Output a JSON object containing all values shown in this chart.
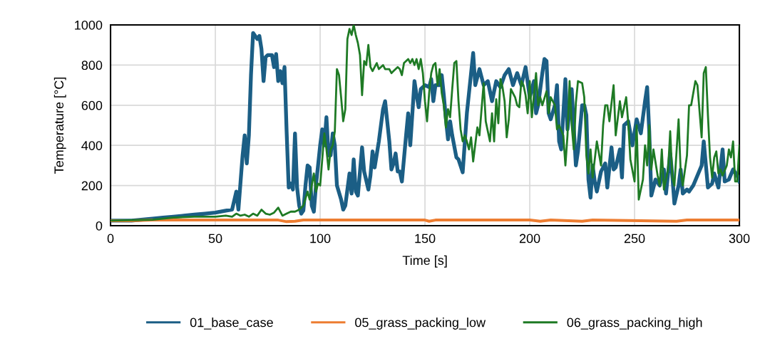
{
  "chart_data": {
    "type": "line",
    "xlabel": "Time [s]",
    "ylabel": "Temperature [°C]",
    "xlim": [
      0,
      300
    ],
    "xticks": [
      0,
      50,
      100,
      150,
      200,
      250,
      300
    ],
    "ylim": [
      0,
      1000
    ],
    "yticks": [
      0,
      200,
      400,
      600,
      800,
      1000
    ],
    "grid": true,
    "legend": "bottom",
    "marker": "none",
    "line_style": "solid",
    "series": [
      {
        "name": "01_base_case",
        "color": "#1b5e85",
        "x": [
          0,
          10,
          20,
          25,
          30,
          35,
          40,
          45,
          50,
          55,
          58,
          60,
          61,
          63,
          64,
          65,
          66,
          67,
          68,
          70,
          71,
          72,
          73,
          74,
          75,
          77,
          78,
          79,
          80,
          81,
          82,
          83,
          84,
          85,
          86,
          87,
          88,
          89,
          90,
          91,
          92,
          93,
          94,
          95,
          96,
          97,
          98,
          100,
          101,
          102,
          103,
          104,
          105,
          106,
          107,
          108,
          110,
          111,
          112,
          114,
          115,
          116,
          117,
          118,
          120,
          121,
          123,
          124,
          125,
          126,
          128,
          130,
          131,
          133,
          134,
          135,
          136,
          137,
          138,
          139,
          141,
          142,
          143,
          145,
          146,
          147,
          148,
          150,
          152,
          153,
          154,
          155,
          157,
          158,
          159,
          160,
          161,
          162,
          163,
          165,
          166,
          168,
          170,
          172,
          173,
          174,
          176,
          178,
          180,
          182,
          184,
          186,
          188,
          190,
          192,
          194,
          196,
          198,
          200,
          202,
          203,
          204,
          206,
          207,
          208,
          209,
          210,
          212,
          213,
          214,
          215,
          217,
          218,
          220,
          222,
          223,
          225,
          226,
          227,
          228,
          229,
          230,
          231,
          232,
          234,
          236,
          237,
          239,
          240,
          241,
          243,
          244,
          245,
          247,
          249,
          251,
          253,
          255,
          256,
          257,
          258,
          260,
          262,
          264,
          265,
          267,
          268,
          269,
          271,
          272,
          273,
          275,
          276,
          278,
          280,
          282,
          283,
          285,
          287,
          288,
          290,
          292,
          293,
          295,
          297,
          299,
          300
        ],
        "values": [
          25,
          25,
          35,
          40,
          45,
          50,
          55,
          60,
          65,
          75,
          80,
          170,
          80,
          350,
          450,
          310,
          450,
          750,
          960,
          930,
          945,
          880,
          720,
          840,
          850,
          850,
          790,
          855,
          720,
          770,
          710,
          790,
          470,
          190,
          210,
          180,
          460,
          190,
          100,
          60,
          75,
          200,
          300,
          290,
          100,
          70,
          200,
          400,
          480,
          400,
          540,
          350,
          350,
          460,
          400,
          200,
          130,
          80,
          100,
          260,
          160,
          330,
          170,
          150,
          390,
          270,
          180,
          250,
          370,
          290,
          420,
          580,
          620,
          420,
          280,
          310,
          360,
          270,
          270,
          220,
          450,
          560,
          400,
          720,
          650,
          590,
          680,
          700,
          690,
          730,
          620,
          700,
          700,
          750,
          650,
          530,
          430,
          520,
          450,
          340,
          330,
          266,
          560,
          760,
          860,
          700,
          780,
          700,
          720,
          620,
          720,
          690,
          750,
          780,
          700,
          760,
          700,
          790,
          640,
          720,
          560,
          600,
          760,
          830,
          820,
          560,
          530,
          600,
          700,
          420,
          380,
          730,
          480,
          680,
          300,
          370,
          600,
          600,
          550,
          230,
          140,
          300,
          220,
          170,
          270,
          310,
          190,
          390,
          280,
          290,
          380,
          240,
          500,
          520,
          400,
          530,
          460,
          620,
          690,
          470,
          150,
          230,
          200,
          280,
          160,
          360,
          250,
          110,
          200,
          280,
          160,
          180,
          170,
          200,
          250,
          300,
          420,
          190,
          210,
          260,
          190,
          380,
          220,
          230,
          280,
          250,
          220
        ]
      },
      {
        "name": "05_grass_packing_low",
        "color": "#ed7d31",
        "x": [
          0,
          10,
          20,
          30,
          50,
          80,
          84,
          88,
          92,
          150,
          152,
          155,
          200,
          205,
          210,
          225,
          230,
          270,
          275,
          300
        ],
        "values": [
          25,
          25,
          28,
          28,
          28,
          28,
          20,
          22,
          28,
          28,
          22,
          28,
          28,
          22,
          28,
          22,
          28,
          22,
          28,
          28
        ]
      },
      {
        "name": "06_grass_packing_high",
        "color": "#1e7a24",
        "x": [
          0,
          20,
          30,
          40,
          50,
          55,
          58,
          60,
          62,
          64,
          66,
          68,
          70,
          72,
          74,
          76,
          78,
          80,
          82,
          84,
          86,
          88,
          90,
          92,
          94,
          95,
          96,
          97,
          98,
          99,
          100,
          101,
          102,
          103,
          104,
          105,
          106,
          107,
          108,
          109,
          110,
          111,
          112,
          113,
          114,
          115,
          116,
          117,
          118,
          119,
          120,
          121,
          122,
          123,
          124,
          125,
          126,
          127,
          128,
          130,
          131,
          133,
          134,
          135,
          137,
          138,
          139,
          140,
          142,
          143,
          144,
          145,
          146,
          147,
          148,
          149,
          150,
          151,
          152,
          153,
          154,
          155,
          156,
          157,
          158,
          159,
          160,
          161,
          162,
          163,
          164,
          165,
          166,
          167,
          168,
          169,
          170,
          171,
          172,
          173,
          175,
          176,
          178,
          179,
          180,
          181,
          182,
          183,
          184,
          185,
          186,
          187,
          188,
          189,
          190,
          191,
          193,
          194,
          195,
          196,
          197,
          198,
          199,
          200,
          201,
          203,
          204,
          205,
          206,
          208,
          209,
          210,
          212,
          213,
          214,
          216,
          217,
          218,
          219,
          220,
          221,
          222,
          223,
          225,
          226,
          227,
          228,
          229,
          230,
          232,
          234,
          235,
          236,
          237,
          238,
          240,
          241,
          243,
          244,
          246,
          247,
          248,
          250,
          251,
          252,
          254,
          255,
          256,
          257,
          258,
          259,
          261,
          262,
          263,
          264,
          266,
          267,
          268,
          269,
          271,
          272,
          273,
          275,
          276,
          277,
          279,
          280,
          282,
          283,
          284,
          285,
          286,
          287,
          288,
          289,
          290,
          291,
          292,
          294,
          295,
          296,
          297,
          298,
          299,
          300
        ],
        "values": [
          25,
          30,
          40,
          45,
          45,
          50,
          45,
          60,
          50,
          55,
          45,
          60,
          50,
          80,
          60,
          55,
          65,
          90,
          50,
          60,
          70,
          70,
          80,
          100,
          170,
          130,
          200,
          260,
          170,
          210,
          200,
          330,
          460,
          380,
          280,
          380,
          400,
          470,
          780,
          750,
          640,
          520,
          580,
          930,
          980,
          950,
          1000,
          950,
          910,
          850,
          650,
          820,
          800,
          900,
          790,
          770,
          790,
          810,
          780,
          800,
          780,
          780,
          760,
          770,
          790,
          780,
          750,
          810,
          830,
          810,
          830,
          800,
          830,
          780,
          830,
          760,
          620,
          520,
          660,
          760,
          800,
          810,
          700,
          780,
          660,
          600,
          490,
          580,
          540,
          680,
          810,
          820,
          620,
          480,
          420,
          450,
          420,
          380,
          440,
          320,
          490,
          450,
          710,
          520,
          470,
          420,
          560,
          420,
          630,
          510,
          730,
          690,
          620,
          440,
          530,
          680,
          640,
          600,
          590,
          720,
          700,
          650,
          560,
          720,
          540,
          760,
          600,
          640,
          600,
          670,
          560,
          640,
          600,
          480,
          500,
          450,
          300,
          450,
          720,
          500,
          380,
          610,
          720,
          710,
          640,
          350,
          260,
          380,
          240,
          420,
          300,
          500,
          600,
          600,
          520,
          700,
          450,
          620,
          540,
          640,
          510,
          330,
          220,
          500,
          130,
          230,
          400,
          300,
          500,
          280,
          380,
          250,
          200,
          380,
          180,
          280,
          470,
          240,
          200,
          530,
          270,
          200,
          350,
          600,
          600,
          720,
          700,
          440,
          760,
          790,
          550,
          340,
          240,
          340,
          370,
          260,
          280,
          250,
          300,
          380,
          340,
          420,
          220,
          220,
          400
        ]
      }
    ]
  }
}
